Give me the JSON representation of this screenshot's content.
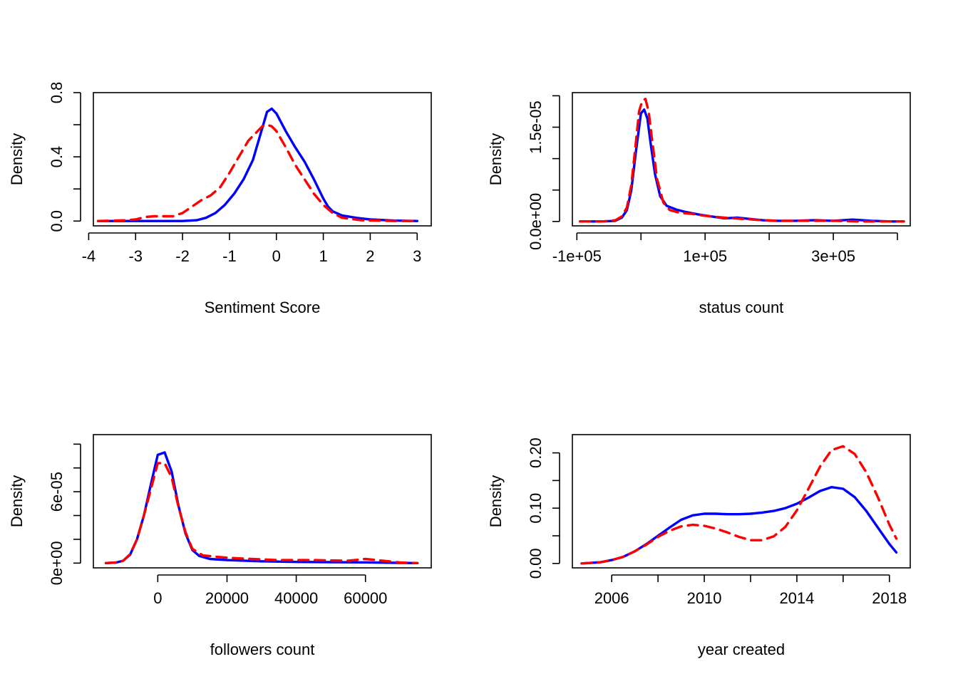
{
  "colors": {
    "series_1": "#0000ff",
    "series_2": "#ff0000"
  },
  "chart_data": [
    {
      "type": "line",
      "xlabel": "Sentiment Score",
      "ylabel": "Density",
      "xlim": [
        -3.9,
        3.3
      ],
      "ylim": [
        -0.03,
        0.8
      ],
      "xticks": [
        {
          "v": -4,
          "label": "-4"
        },
        {
          "v": -3,
          "label": "-3"
        },
        {
          "v": -2,
          "label": "-2"
        },
        {
          "v": -1,
          "label": "-1"
        },
        {
          "v": 0,
          "label": "0"
        },
        {
          "v": 1,
          "label": "1"
        },
        {
          "v": 2,
          "label": "2"
        },
        {
          "v": 3,
          "label": "3"
        }
      ],
      "yticks": [
        {
          "v": 0,
          "label": "0.0"
        },
        {
          "v": 0.2,
          "label": ""
        },
        {
          "v": 0.4,
          "label": "0.4"
        },
        {
          "v": 0.6,
          "label": ""
        },
        {
          "v": 0.8,
          "label": "0.8"
        }
      ],
      "series": [
        {
          "style": "solid",
          "x": [
            -3.8,
            -3.0,
            -2.0,
            -1.7,
            -1.5,
            -1.3,
            -1.1,
            -0.9,
            -0.7,
            -0.5,
            -0.3,
            -0.2,
            -0.1,
            0.0,
            0.2,
            0.4,
            0.6,
            0.8,
            0.9,
            1.0,
            1.1,
            1.2,
            1.4,
            1.7,
            2.0,
            2.5,
            3.0
          ],
          "y": [
            0.0,
            0.0,
            0.0,
            0.005,
            0.02,
            0.05,
            0.1,
            0.17,
            0.26,
            0.38,
            0.58,
            0.68,
            0.7,
            0.67,
            0.56,
            0.46,
            0.37,
            0.26,
            0.2,
            0.14,
            0.09,
            0.06,
            0.035,
            0.02,
            0.01,
            0.003,
            0.0
          ]
        },
        {
          "style": "dashed",
          "x": [
            -3.8,
            -3.2,
            -3.0,
            -2.8,
            -2.6,
            -2.4,
            -2.2,
            -2.0,
            -1.8,
            -1.6,
            -1.4,
            -1.2,
            -1.0,
            -0.8,
            -0.6,
            -0.4,
            -0.3,
            -0.2,
            -0.1,
            0.0,
            0.2,
            0.4,
            0.6,
            0.8,
            1.0,
            1.2,
            1.4,
            1.8,
            2.5,
            3.0
          ],
          "y": [
            0.0,
            0.005,
            0.01,
            0.025,
            0.03,
            0.03,
            0.03,
            0.05,
            0.09,
            0.13,
            0.16,
            0.21,
            0.3,
            0.4,
            0.5,
            0.56,
            0.59,
            0.6,
            0.59,
            0.56,
            0.46,
            0.35,
            0.26,
            0.17,
            0.1,
            0.05,
            0.02,
            0.005,
            0.0,
            0.0
          ]
        }
      ]
    },
    {
      "type": "line",
      "xlabel": "status count",
      "ylabel": "Density",
      "xlim": [
        -107000,
        420000
      ],
      "ylim": [
        -7e-07,
        2.05e-05
      ],
      "xticks": [
        {
          "v": -100000,
          "label": "-1e+05"
        },
        {
          "v": 0,
          "label": ""
        },
        {
          "v": 100000,
          "label": "1e+05"
        },
        {
          "v": 200000,
          "label": ""
        },
        {
          "v": 300000,
          "label": "3e+05"
        },
        {
          "v": 400000,
          "label": ""
        }
      ],
      "yticks": [
        {
          "v": 0,
          "label": "0.0e+00"
        },
        {
          "v": 5e-06,
          "label": ""
        },
        {
          "v": 1e-05,
          "label": ""
        },
        {
          "v": 1.5e-05,
          "label": "1.5e-05"
        },
        {
          "v": 2e-05,
          "label": ""
        }
      ],
      "series": [
        {
          "style": "solid",
          "x": [
            -95000,
            -60000,
            -40000,
            -30000,
            -22000,
            -15000,
            -8000,
            0,
            5000,
            10000,
            15000,
            22000,
            30000,
            40000,
            55000,
            70000,
            90000,
            110000,
            130000,
            150000,
            170000,
            190000,
            210000,
            240000,
            270000,
            300000,
            330000,
            360000,
            390000,
            410000
          ],
          "y": [
            0.0,
            0.0,
            1e-07,
            6e-07,
            1.8e-06,
            5e-06,
            1.1e-05,
            1.72e-05,
            1.78e-05,
            1.64e-05,
            1.25e-05,
            7.5e-06,
            4e-06,
            2.5e-06,
            1.9e-06,
            1.5e-06,
            1.1e-06,
            8e-07,
            5e-07,
            6e-07,
            4e-07,
            2e-07,
            1e-07,
            1e-07,
            2e-07,
            1e-07,
            3e-07,
            1e-07,
            0.0,
            0.0
          ]
        },
        {
          "style": "dashed",
          "x": [
            -95000,
            -60000,
            -40000,
            -30000,
            -22000,
            -15000,
            -8000,
            -3000,
            2000,
            7000,
            12000,
            18000,
            25000,
            35000,
            45000,
            60000,
            80000,
            100000,
            130000,
            160000,
            190000,
            220000,
            260000,
            300000,
            340000,
            380000,
            410000
          ],
          "y": [
            0.0,
            0.0,
            2e-07,
            8e-07,
            2.2e-06,
            5.8e-06,
            1.25e-05,
            1.75e-05,
            1.92e-05,
            1.95e-05,
            1.75e-05,
            1.25e-05,
            6.8e-06,
            3e-06,
            1.8e-06,
            1.4e-06,
            1.2e-06,
            9e-07,
            6e-07,
            4e-07,
            2e-07,
            1e-07,
            1e-07,
            1e-07,
            0.0,
            0.0,
            0.0
          ]
        }
      ]
    },
    {
      "type": "line",
      "xlabel": "followers count",
      "ylabel": "Density",
      "xlim": [
        -18600,
        79000
      ],
      "ylim": [
        -4e-06,
        0.000108
      ],
      "xticks": [
        {
          "v": 0,
          "label": "0"
        },
        {
          "v": 20000,
          "label": "20000"
        },
        {
          "v": 40000,
          "label": "40000"
        },
        {
          "v": 60000,
          "label": "60000"
        }
      ],
      "yticks": [
        {
          "v": 0,
          "label": "0e+00"
        },
        {
          "v": 2e-05,
          "label": ""
        },
        {
          "v": 4e-05,
          "label": ""
        },
        {
          "v": 6e-05,
          "label": "6e-05"
        },
        {
          "v": 8e-05,
          "label": ""
        },
        {
          "v": 0.0001,
          "label": ""
        }
      ],
      "series": [
        {
          "style": "solid",
          "x": [
            -15000,
            -12000,
            -10000,
            -8000,
            -6000,
            -4000,
            -2000,
            0,
            2000,
            4000,
            6000,
            8000,
            10000,
            12000,
            15000,
            20000,
            30000,
            40000,
            50000,
            60000,
            70000,
            75000
          ],
          "y": [
            0.0,
            5e-07,
            2e-06,
            7e-06,
            2e-05,
            4e-05,
            6.6e-05,
            9.1e-05,
            9.3e-05,
            7.7e-05,
            4.8e-05,
            2.5e-05,
            1.1e-05,
            6e-06,
            3.5e-06,
            2.5e-06,
            1.5e-06,
            1e-06,
            8e-07,
            6e-07,
            2e-07,
            0.0
          ],
          "note": ""
        },
        {
          "style": "dashed",
          "x": [
            -15000,
            -12000,
            -10000,
            -8000,
            -6000,
            -4000,
            -2000,
            0,
            2000,
            4000,
            6000,
            8000,
            10000,
            13000,
            20000,
            27000,
            35000,
            45000,
            55000,
            60000,
            65000,
            70000,
            75000
          ],
          "y": [
            0.0,
            5e-07,
            2e-06,
            7.5e-06,
            2e-05,
            4e-05,
            6.2e-05,
            8.4e-05,
            8.4e-05,
            7.2e-05,
            4.7e-05,
            2.6e-05,
            1.2e-05,
            6.5e-06,
            4.5e-06,
            3.5e-06,
            2.5e-06,
            2.5e-06,
            2e-06,
            3.5e-06,
            2e-06,
            5e-07,
            0.0
          ]
        }
      ]
    },
    {
      "type": "line",
      "xlabel": "year created",
      "ylabel": "Density",
      "xlim": [
        2004.3,
        2018.9
      ],
      "ylim": [
        -0.008,
        0.233
      ],
      "xticks": [
        {
          "v": 2006,
          "label": "2006"
        },
        {
          "v": 2008,
          "label": ""
        },
        {
          "v": 2010,
          "label": "2010"
        },
        {
          "v": 2012,
          "label": ""
        },
        {
          "v": 2014,
          "label": "2014"
        },
        {
          "v": 2016,
          "label": ""
        },
        {
          "v": 2018,
          "label": "2018"
        }
      ],
      "yticks": [
        {
          "v": 0,
          "label": "0.00"
        },
        {
          "v": 0.05,
          "label": ""
        },
        {
          "v": 0.1,
          "label": "0.10"
        },
        {
          "v": 0.15,
          "label": ""
        },
        {
          "v": 0.2,
          "label": "0.20"
        }
      ],
      "series": [
        {
          "style": "solid",
          "x": [
            2004.7,
            2005.5,
            2006.0,
            2006.5,
            2007.0,
            2007.5,
            2008.0,
            2008.5,
            2009.0,
            2009.5,
            2010.0,
            2010.5,
            2011.0,
            2011.5,
            2012.0,
            2012.5,
            2013.0,
            2013.5,
            2014.0,
            2014.5,
            2015.0,
            2015.5,
            2016.0,
            2016.5,
            2017.0,
            2017.5,
            2018.0,
            2018.3
          ],
          "y": [
            0.0,
            0.002,
            0.006,
            0.012,
            0.022,
            0.035,
            0.05,
            0.065,
            0.079,
            0.087,
            0.09,
            0.09,
            0.089,
            0.089,
            0.09,
            0.092,
            0.095,
            0.1,
            0.108,
            0.119,
            0.131,
            0.138,
            0.135,
            0.12,
            0.095,
            0.065,
            0.035,
            0.02
          ]
        },
        {
          "style": "dashed",
          "x": [
            2004.7,
            2005.5,
            2006.0,
            2006.5,
            2007.0,
            2007.5,
            2008.0,
            2008.5,
            2009.0,
            2009.5,
            2010.0,
            2010.5,
            2011.0,
            2011.5,
            2012.0,
            2012.5,
            2013.0,
            2013.5,
            2014.0,
            2014.5,
            2015.0,
            2015.5,
            2016.0,
            2016.5,
            2017.0,
            2017.5,
            2018.0,
            2018.3
          ],
          "y": [
            0.0,
            0.002,
            0.006,
            0.012,
            0.022,
            0.034,
            0.048,
            0.059,
            0.067,
            0.07,
            0.068,
            0.063,
            0.056,
            0.048,
            0.042,
            0.042,
            0.049,
            0.066,
            0.096,
            0.135,
            0.175,
            0.205,
            0.212,
            0.198,
            0.165,
            0.12,
            0.07,
            0.045
          ]
        }
      ]
    }
  ]
}
